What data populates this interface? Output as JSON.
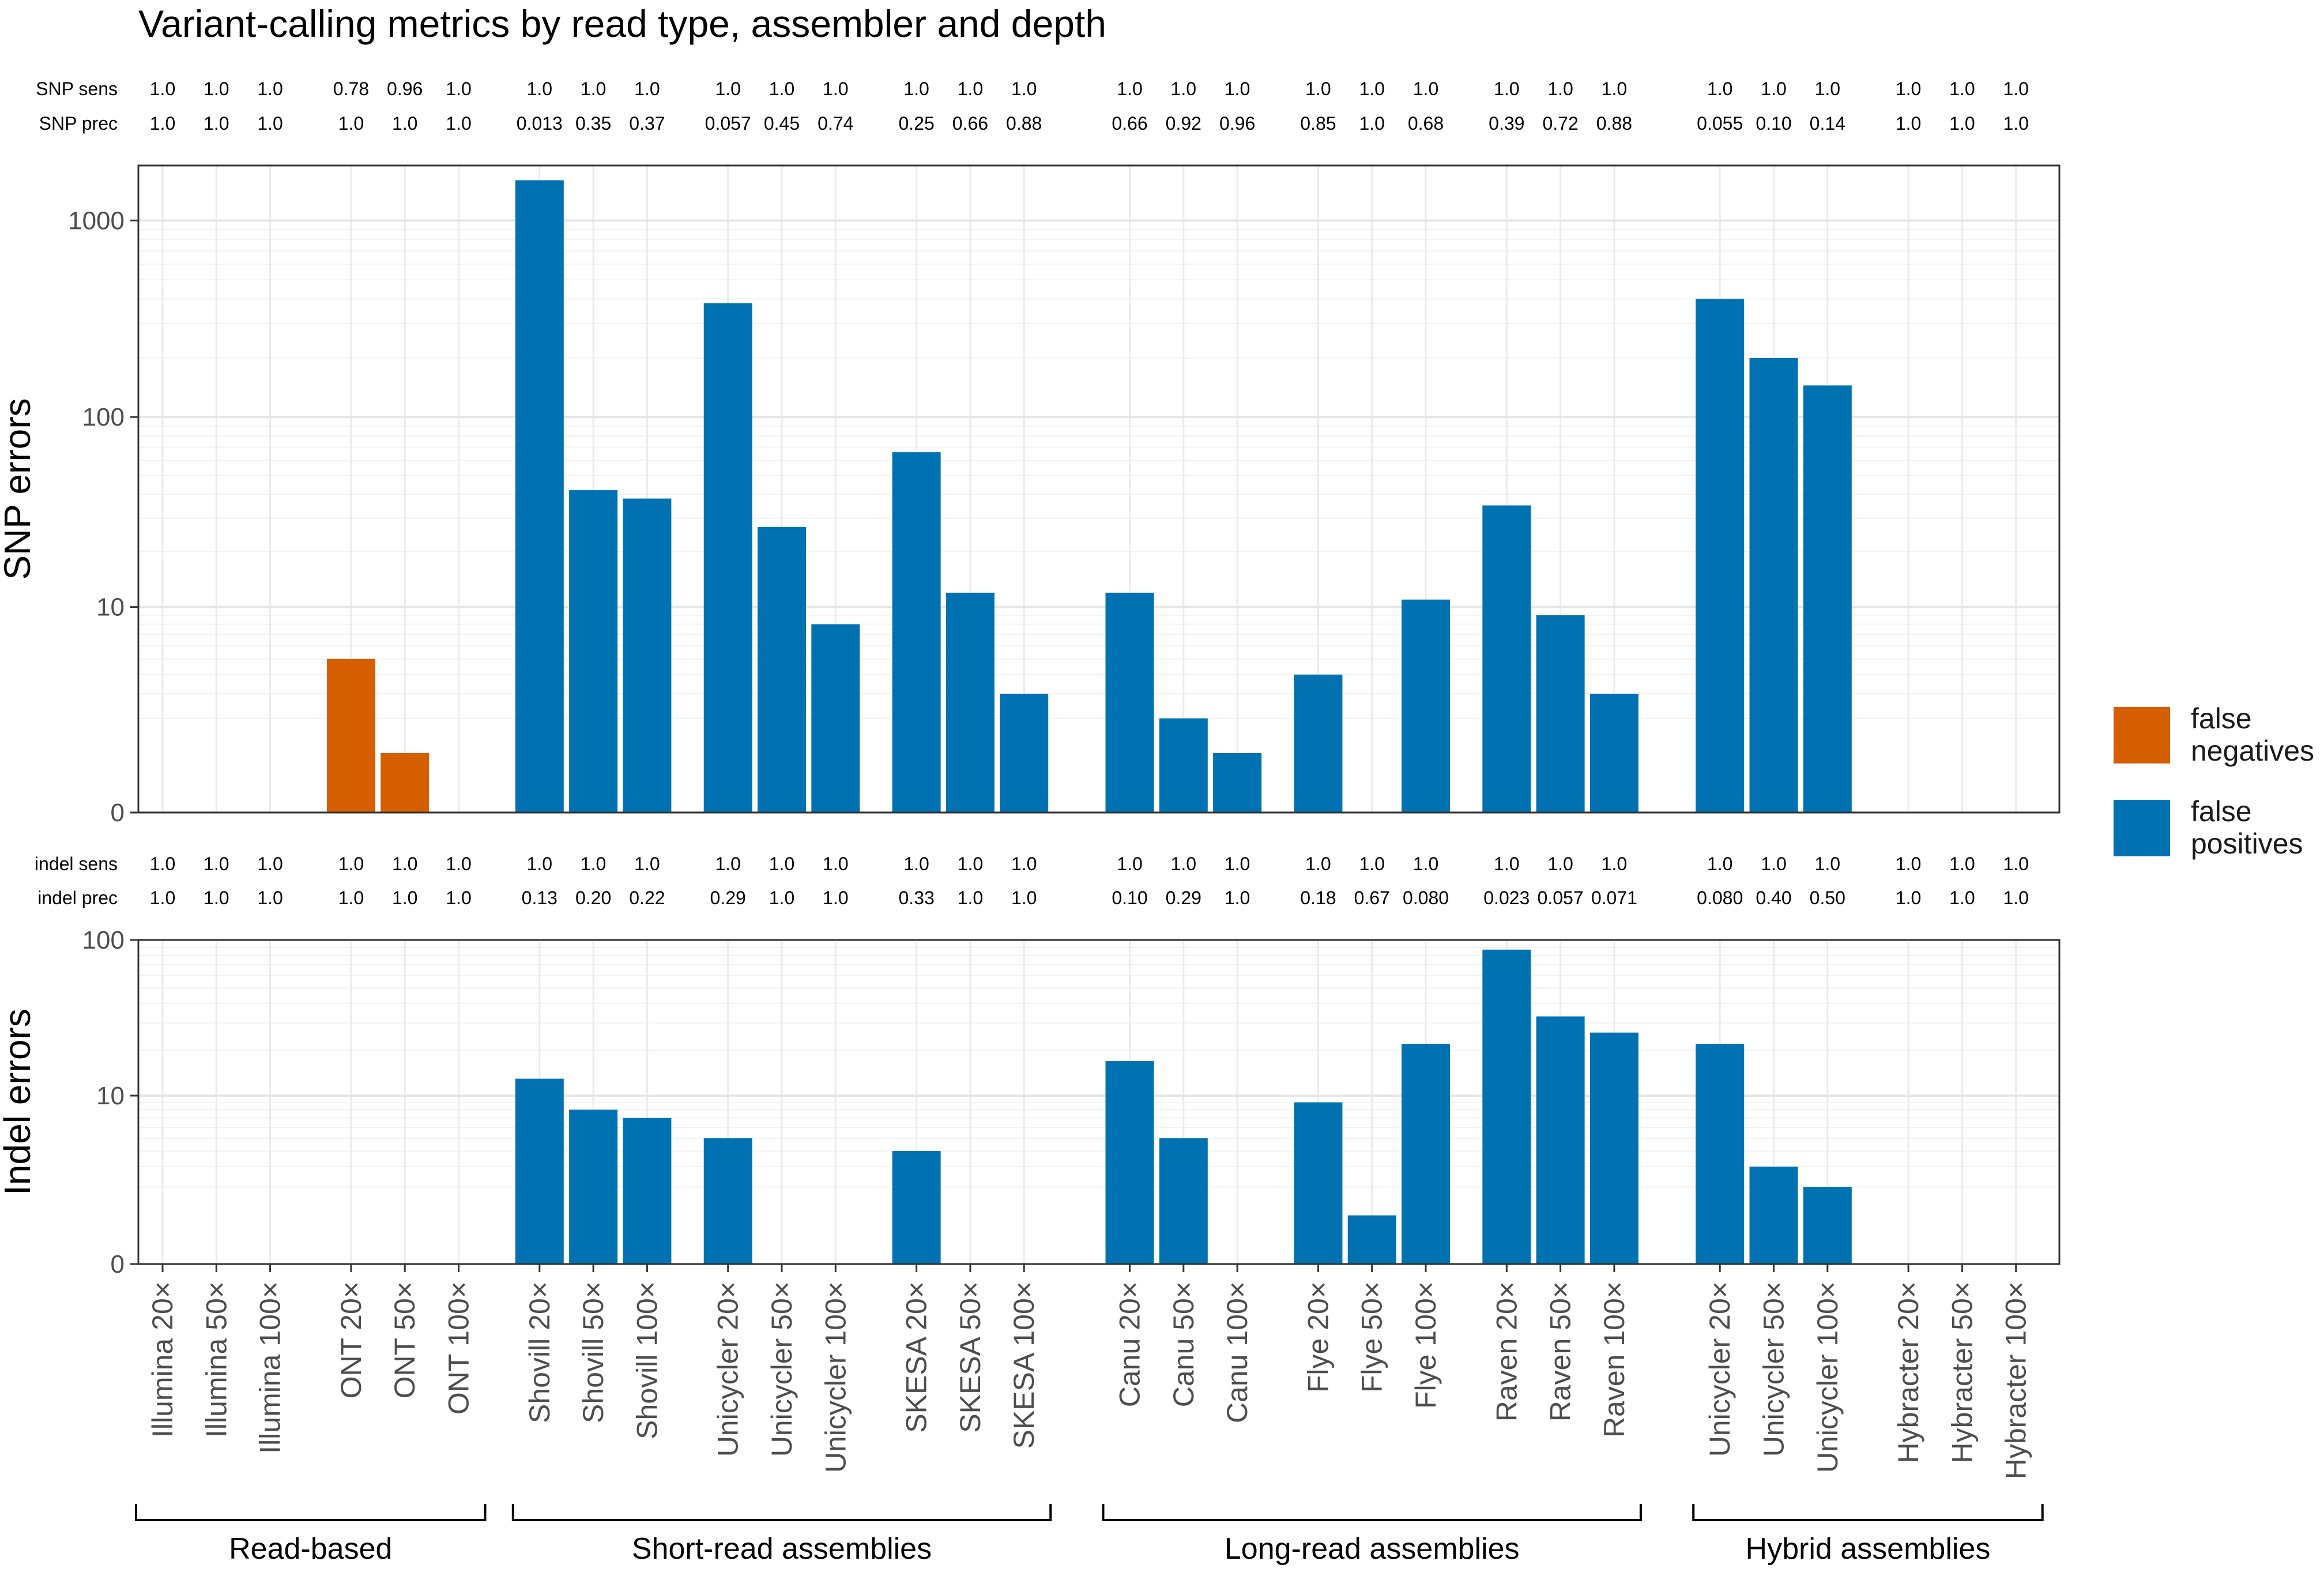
{
  "chart_data": {
    "type": "bar",
    "title": "Variant-calling metrics by read type, assembler and depth",
    "categories": [
      "Illumina 20×",
      "Illumina 50×",
      "Illumina 100×",
      "ONT 20×",
      "ONT 50×",
      "ONT 100×",
      "Shovill 20×",
      "Shovill 50×",
      "Shovill 100×",
      "Unicycler 20×",
      "Unicycler 50×",
      "Unicycler 100×",
      "SKESA 20×",
      "SKESA 50×",
      "SKESA 100×",
      "Canu 20×",
      "Canu 50×",
      "Canu 100×",
      "Flye 20×",
      "Flye 50×",
      "Flye 100×",
      "Raven 20×",
      "Raven 50×",
      "Raven 100×",
      "Unicycler 20×",
      "Unicycler 50×",
      "Unicycler 100×",
      "Hybracter 20×",
      "Hybracter 50×",
      "Hybracter 100×"
    ],
    "groups": [
      {
        "label": "Read-based",
        "start": 0,
        "end": 5
      },
      {
        "label": "Short-read assemblies",
        "start": 6,
        "end": 14
      },
      {
        "label": "Long-read assemblies",
        "start": 15,
        "end": 23
      },
      {
        "label": "Hybrid assemblies",
        "start": 24,
        "end": 29
      }
    ],
    "legend": {
      "position": "right",
      "entries": [
        {
          "label": "false negatives",
          "lines": [
            "false",
            "negatives"
          ],
          "color": "#d55e00"
        },
        {
          "label": "false positives",
          "lines": [
            "false",
            "positives"
          ],
          "color": "#0072b2"
        }
      ]
    },
    "panels": [
      {
        "ylabel": "SNP errors",
        "scale": "log1p",
        "ylim": [
          0,
          1900
        ],
        "yticks": [
          {
            "value": 0,
            "label": "0"
          },
          {
            "value": 10,
            "label": "10"
          },
          {
            "value": 100,
            "label": "100"
          },
          {
            "value": 1000,
            "label": "1000"
          }
        ],
        "grid": true,
        "metric_rows": [
          {
            "label": "SNP sens",
            "values": [
              "1.0",
              "1.0",
              "1.0",
              "0.78",
              "0.96",
              "1.0",
              "1.0",
              "1.0",
              "1.0",
              "1.0",
              "1.0",
              "1.0",
              "1.0",
              "1.0",
              "1.0",
              "1.0",
              "1.0",
              "1.0",
              "1.0",
              "1.0",
              "1.0",
              "1.0",
              "1.0",
              "1.0",
              "1.0",
              "1.0",
              "1.0",
              "1.0",
              "1.0",
              "1.0"
            ]
          },
          {
            "label": "SNP prec",
            "values": [
              "1.0",
              "1.0",
              "1.0",
              "1.0",
              "1.0",
              "1.0",
              "0.013",
              "0.35",
              "0.37",
              "0.057",
              "0.45",
              "0.74",
              "0.25",
              "0.66",
              "0.88",
              "0.66",
              "0.92",
              "0.96",
              "0.85",
              "1.0",
              "0.68",
              "0.39",
              "0.72",
              "0.88",
              "0.055",
              "0.10",
              "0.14",
              "1.0",
              "1.0",
              "1.0"
            ]
          }
        ],
        "series": [
          {
            "name": "false negatives",
            "color": "#d55e00",
            "values": [
              0,
              0,
              0,
              5,
              1,
              0,
              0,
              0,
              0,
              0,
              0,
              0,
              0,
              0,
              0,
              0,
              0,
              0,
              0,
              0,
              0,
              0,
              0,
              0,
              0,
              0,
              0,
              0,
              0,
              0
            ]
          },
          {
            "name": "false positives",
            "color": "#0072b2",
            "values": [
              0,
              0,
              0,
              0,
              0,
              0,
              1600,
              42,
              38,
              380,
              27,
              8,
              66,
              12,
              3,
              12,
              2,
              1,
              4,
              0,
              11,
              35,
              9,
              3,
              400,
              200,
              145,
              0,
              0,
              0
            ]
          }
        ]
      },
      {
        "ylabel": "Indel errors",
        "scale": "log1p",
        "ylim": [
          0,
          100
        ],
        "yticks": [
          {
            "value": 0,
            "label": "0"
          },
          {
            "value": 10,
            "label": "10"
          },
          {
            "value": 100,
            "label": "100"
          }
        ],
        "grid": true,
        "metric_rows": [
          {
            "label": "indel sens",
            "values": [
              "1.0",
              "1.0",
              "1.0",
              "1.0",
              "1.0",
              "1.0",
              "1.0",
              "1.0",
              "1.0",
              "1.0",
              "1.0",
              "1.0",
              "1.0",
              "1.0",
              "1.0",
              "1.0",
              "1.0",
              "1.0",
              "1.0",
              "1.0",
              "1.0",
              "1.0",
              "1.0",
              "1.0",
              "1.0",
              "1.0",
              "1.0",
              "1.0",
              "1.0",
              "1.0"
            ]
          },
          {
            "label": "indel prec",
            "values": [
              "1.0",
              "1.0",
              "1.0",
              "1.0",
              "1.0",
              "1.0",
              "0.13",
              "0.20",
              "0.22",
              "0.29",
              "1.0",
              "1.0",
              "0.33",
              "1.0",
              "1.0",
              "0.10",
              "0.29",
              "1.0",
              "0.18",
              "0.67",
              "0.080",
              "0.023",
              "0.057",
              "0.071",
              "0.080",
              "0.40",
              "0.50",
              "1.0",
              "1.0",
              "1.0"
            ]
          }
        ],
        "series": [
          {
            "name": "false negatives",
            "color": "#d55e00",
            "values": [
              0,
              0,
              0,
              0,
              0,
              0,
              0,
              0,
              0,
              0,
              0,
              0,
              0,
              0,
              0,
              0,
              0,
              0,
              0,
              0,
              0,
              0,
              0,
              0,
              0,
              0,
              0,
              0,
              0,
              0
            ]
          },
          {
            "name": "false positives",
            "color": "#0072b2",
            "values": [
              0,
              0,
              0,
              0,
              0,
              0,
              13,
              8,
              7,
              5,
              0,
              0,
              4,
              0,
              0,
              17,
              5,
              0,
              9,
              1,
              22,
              87,
              33,
              26,
              22,
              3,
              2,
              0,
              0,
              0
            ]
          }
        ]
      }
    ]
  }
}
